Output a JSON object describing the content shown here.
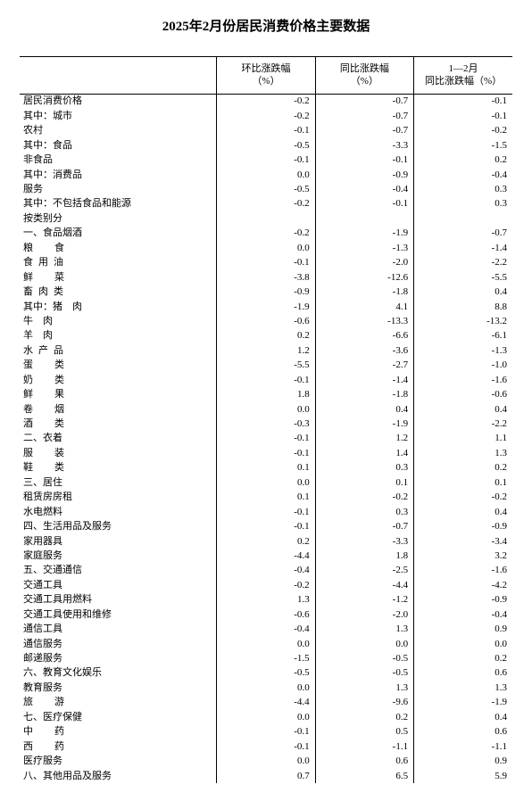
{
  "title": "2025年2月份居民消费价格主要数据",
  "columns": [
    "环比涨跌幅\n（%）",
    "同比涨跌幅\n（%）",
    "1—2月\n同比涨跌幅（%）"
  ],
  "rows": [
    {
      "label": "居民消费价格",
      "indent": 0,
      "sp": "",
      "v": [
        "-0.2",
        "-0.7",
        "-0.1"
      ]
    },
    {
      "label": "其中：城市",
      "indent": 1,
      "sp": "",
      "v": [
        "-0.2",
        "-0.7",
        "-0.1"
      ]
    },
    {
      "label": "农村",
      "indent": 3,
      "sp": "",
      "v": [
        "-0.1",
        "-0.7",
        "-0.2"
      ]
    },
    {
      "label": "其中：食品",
      "indent": 1,
      "sp": "",
      "v": [
        "-0.5",
        "-3.3",
        "-1.5"
      ]
    },
    {
      "label": "非食品",
      "indent": 3,
      "sp": "",
      "v": [
        "-0.1",
        "-0.1",
        "0.2"
      ]
    },
    {
      "label": "其中：消费品",
      "indent": 1,
      "sp": "",
      "v": [
        "0.0",
        "-0.9",
        "-0.4"
      ]
    },
    {
      "label": "服务",
      "indent": 3,
      "sp": "",
      "v": [
        "-0.5",
        "-0.4",
        "0.3"
      ]
    },
    {
      "label": "其中：不包括食品和能源",
      "indent": 1,
      "sp": "",
      "v": [
        "-0.2",
        "-0.1",
        "0.3"
      ]
    },
    {
      "label": "按类别分",
      "indent": 0,
      "sp": "",
      "v": [
        "",
        "",
        ""
      ]
    },
    {
      "label": "一、食品烟酒",
      "indent": 0,
      "sp": "",
      "v": [
        "-0.2",
        "-1.9",
        "-0.7"
      ]
    },
    {
      "label": "粮食",
      "indent": 2,
      "sp": "sp5",
      "v": [
        "0.0",
        "-1.3",
        "-1.4"
      ]
    },
    {
      "label": "食用油",
      "indent": 2,
      "sp": "sp2",
      "v": [
        "-0.1",
        "-2.0",
        "-2.2"
      ]
    },
    {
      "label": "鲜菜",
      "indent": 2,
      "sp": "sp5",
      "v": [
        "-3.8",
        "-12.6",
        "-5.5"
      ]
    },
    {
      "label": "畜肉类",
      "indent": 2,
      "sp": "sp2",
      "v": [
        "-0.9",
        "-1.8",
        "0.4"
      ]
    },
    {
      "label": "其中：猪　肉",
      "indent": 3,
      "sp": "",
      "v": [
        "-1.9",
        "4.1",
        "8.8"
      ]
    },
    {
      "label": "牛　肉",
      "indent": 4,
      "sp": "",
      "v": [
        "-0.6",
        "-13.3",
        "-13.2"
      ]
    },
    {
      "label": "羊　肉",
      "indent": 4,
      "sp": "",
      "v": [
        "0.2",
        "-6.6",
        "-6.1"
      ]
    },
    {
      "label": "水产品",
      "indent": 2,
      "sp": "sp2",
      "v": [
        "1.2",
        "-3.6",
        "-1.3"
      ]
    },
    {
      "label": "蛋类",
      "indent": 2,
      "sp": "sp5",
      "v": [
        "-5.5",
        "-2.7",
        "-1.0"
      ]
    },
    {
      "label": "奶类",
      "indent": 2,
      "sp": "sp5",
      "v": [
        "-0.1",
        "-1.4",
        "-1.6"
      ]
    },
    {
      "label": "鲜果",
      "indent": 2,
      "sp": "sp5",
      "v": [
        "1.8",
        "-1.8",
        "-0.6"
      ]
    },
    {
      "label": "卷烟",
      "indent": 2,
      "sp": "sp5",
      "v": [
        "0.0",
        "0.4",
        "0.4"
      ]
    },
    {
      "label": "酒类",
      "indent": 2,
      "sp": "sp5",
      "v": [
        "-0.3",
        "-1.9",
        "-2.2"
      ]
    },
    {
      "label": "二、衣着",
      "indent": 0,
      "sp": "",
      "v": [
        "-0.1",
        "1.2",
        "1.1"
      ]
    },
    {
      "label": "服装",
      "indent": 2,
      "sp": "sp5",
      "v": [
        "-0.1",
        "1.4",
        "1.3"
      ]
    },
    {
      "label": "鞋类",
      "indent": 2,
      "sp": "sp5",
      "v": [
        "0.1",
        "0.3",
        "0.2"
      ]
    },
    {
      "label": "三、居住",
      "indent": 0,
      "sp": "",
      "v": [
        "0.0",
        "0.1",
        "0.1"
      ]
    },
    {
      "label": "租赁房房租",
      "indent": 2,
      "sp": "",
      "v": [
        "0.1",
        "-0.2",
        "-0.2"
      ]
    },
    {
      "label": "水电燃料",
      "indent": 2,
      "sp": "",
      "v": [
        "-0.1",
        "0.3",
        "0.4"
      ]
    },
    {
      "label": "四、生活用品及服务",
      "indent": 0,
      "sp": "",
      "v": [
        "-0.1",
        "-0.7",
        "-0.9"
      ]
    },
    {
      "label": "家用器具",
      "indent": 2,
      "sp": "",
      "v": [
        "0.2",
        "-3.3",
        "-3.4"
      ]
    },
    {
      "label": "家庭服务",
      "indent": 2,
      "sp": "",
      "v": [
        "-4.4",
        "1.8",
        "3.2"
      ]
    },
    {
      "label": "五、交通通信",
      "indent": 0,
      "sp": "",
      "v": [
        "-0.4",
        "-2.5",
        "-1.6"
      ]
    },
    {
      "label": "交通工具",
      "indent": 2,
      "sp": "",
      "v": [
        "-0.2",
        "-4.4",
        "-4.2"
      ]
    },
    {
      "label": "交通工具用燃料",
      "indent": 2,
      "sp": "",
      "v": [
        "1.3",
        "-1.2",
        "-0.9"
      ]
    },
    {
      "label": "交通工具使用和维修",
      "indent": 2,
      "sp": "",
      "v": [
        "-0.6",
        "-2.0",
        "-0.4"
      ]
    },
    {
      "label": "通信工具",
      "indent": 2,
      "sp": "",
      "v": [
        "-0.4",
        "1.3",
        "0.9"
      ]
    },
    {
      "label": "通信服务",
      "indent": 2,
      "sp": "",
      "v": [
        "0.0",
        "0.0",
        "0.0"
      ]
    },
    {
      "label": "邮递服务",
      "indent": 2,
      "sp": "",
      "v": [
        "-1.5",
        "-0.5",
        "0.2"
      ]
    },
    {
      "label": "六、教育文化娱乐",
      "indent": 0,
      "sp": "",
      "v": [
        "-0.5",
        "-0.5",
        "0.6"
      ]
    },
    {
      "label": "教育服务",
      "indent": 2,
      "sp": "",
      "v": [
        "0.0",
        "1.3",
        "1.3"
      ]
    },
    {
      "label": "旅游",
      "indent": 2,
      "sp": "sp5",
      "v": [
        "-4.4",
        "-9.6",
        "-1.9"
      ]
    },
    {
      "label": "七、医疗保健",
      "indent": 0,
      "sp": "",
      "v": [
        "0.0",
        "0.2",
        "0.4"
      ]
    },
    {
      "label": "中药",
      "indent": 2,
      "sp": "sp5",
      "v": [
        "-0.1",
        "0.5",
        "0.6"
      ]
    },
    {
      "label": "西药",
      "indent": 2,
      "sp": "sp5",
      "v": [
        "-0.1",
        "-1.1",
        "-1.1"
      ]
    },
    {
      "label": "医疗服务",
      "indent": 2,
      "sp": "",
      "v": [
        "0.0",
        "0.6",
        "0.9"
      ]
    },
    {
      "label": "八、其他用品及服务",
      "indent": 0,
      "sp": "",
      "v": [
        "0.7",
        "6.5",
        "5.9"
      ]
    }
  ],
  "colors": {
    "text": "#000000",
    "border": "#000000",
    "background": "#ffffff"
  }
}
